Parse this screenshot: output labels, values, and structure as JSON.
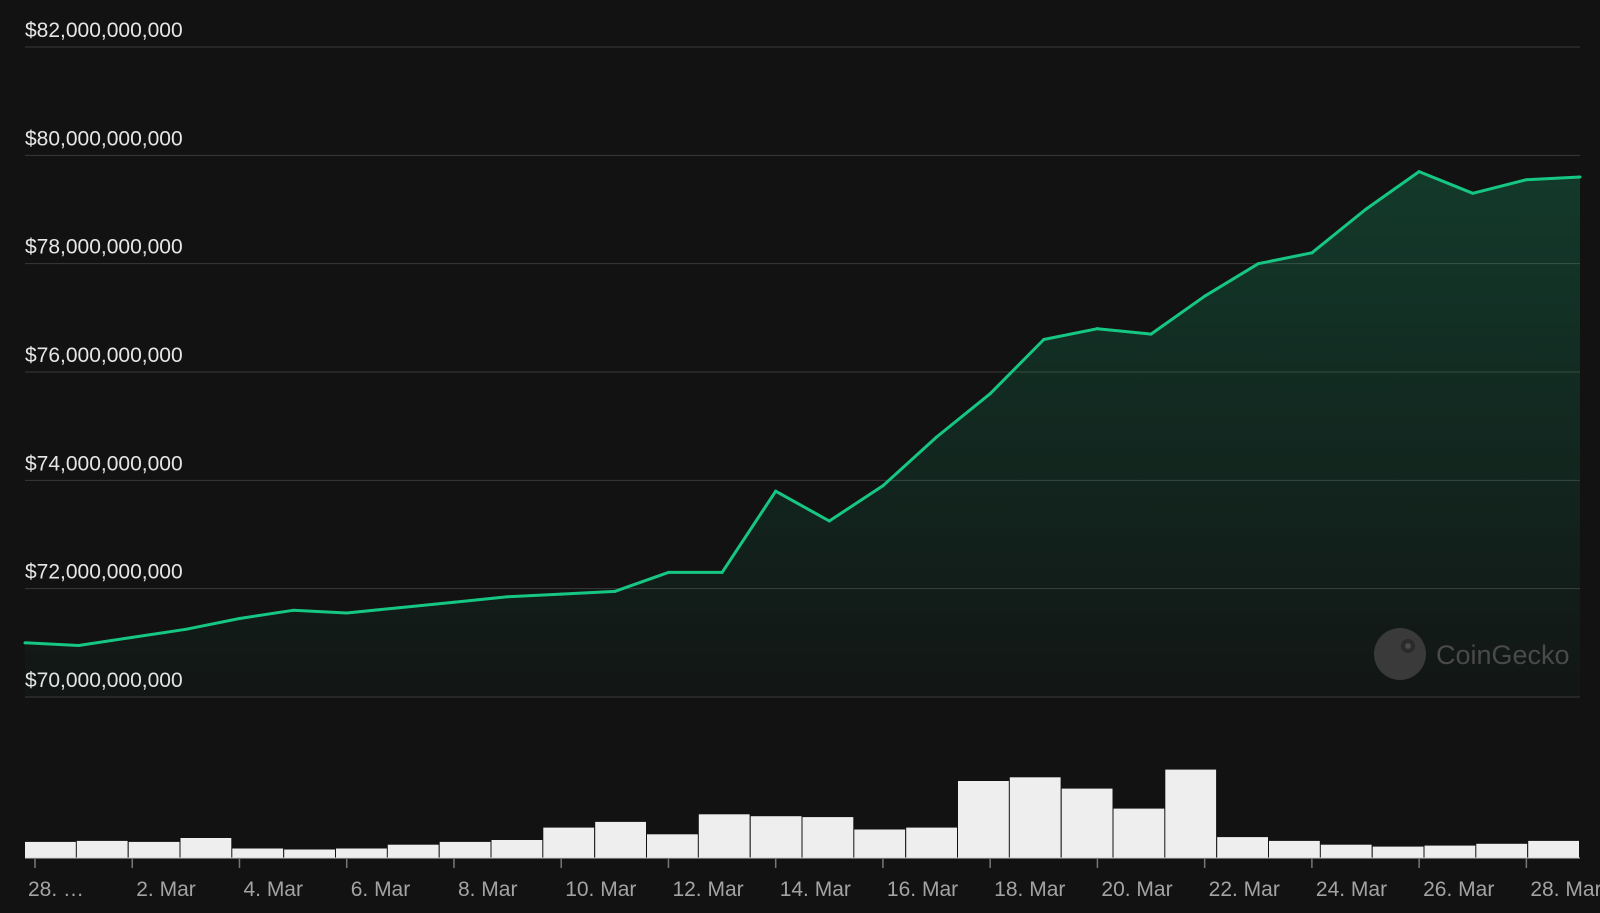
{
  "chart_data": {
    "type": "area",
    "series": [
      {
        "x": [
          "Feb 28",
          "Mar 1",
          "Mar 2",
          "Mar 3",
          "Mar 4",
          "Mar 5",
          "Mar 6",
          "Mar 7",
          "Mar 8",
          "Mar 9",
          "Mar 10",
          "Mar 11",
          "Mar 12",
          "Mar 13",
          "Mar 14",
          "Mar 15",
          "Mar 16",
          "Mar 17",
          "Mar 18",
          "Mar 19",
          "Mar 20",
          "Mar 21",
          "Mar 22",
          "Mar 23",
          "Mar 24",
          "Mar 25",
          "Mar 26",
          "Mar 27",
          "Mar 28",
          "Mar 29"
        ],
        "values": [
          71000000000,
          70950000000,
          71100000000,
          71250000000,
          71450000000,
          71600000000,
          71550000000,
          71650000000,
          71750000000,
          71850000000,
          71900000000,
          71950000000,
          72300000000,
          72300000000,
          73800000000,
          73250000000,
          73900000000,
          74800000000,
          75600000000,
          76600000000,
          76800000000,
          76700000000,
          77400000000,
          78000000000,
          78200000000,
          79000000000,
          79700000000,
          79300000000,
          79550000000,
          79600000000
        ]
      },
      {
        "x": [
          "Feb 28",
          "Mar 1",
          "Mar 2",
          "Mar 3",
          "Mar 4",
          "Mar 5",
          "Mar 6",
          "Mar 7",
          "Mar 8",
          "Mar 9",
          "Mar 10",
          "Mar 11",
          "Mar 12",
          "Mar 13",
          "Mar 14",
          "Mar 15",
          "Mar 16",
          "Mar 17",
          "Mar 18",
          "Mar 19",
          "Mar 20",
          "Mar 21",
          "Mar 22",
          "Mar 23",
          "Mar 24",
          "Mar 25",
          "Mar 26",
          "Mar 27",
          "Mar 28",
          "Mar 29"
        ],
        "values": [
          0.17,
          0.18,
          0.17,
          0.21,
          0.1,
          0.09,
          0.1,
          0.14,
          0.17,
          0.19,
          0.32,
          0.38,
          0.25,
          0.46,
          0.44,
          0.43,
          0.3,
          0.32,
          0.81,
          0.85,
          0.73,
          0.52,
          0.93,
          0.22,
          0.18,
          0.14,
          0.12,
          0.13,
          0.15,
          0.18
        ]
      }
    ],
    "y_ticks": [
      "$70,000,000,000",
      "$72,000,000,000",
      "$74,000,000,000",
      "$76,000,000,000",
      "$78,000,000,000",
      "$80,000,000,000",
      "$82,000,000,000"
    ],
    "x_ticks": [
      "28. …",
      "2. Mar",
      "4. Mar",
      "6. Mar",
      "8. Mar",
      "10. Mar",
      "12. Mar",
      "14. Mar",
      "16. Mar",
      "18. Mar",
      "20. Mar",
      "22. Mar",
      "24. Mar",
      "26. Mar",
      "28. Mar"
    ],
    "ylim": [
      70000000000,
      82000000000
    ],
    "grid": true,
    "line_color": "#16c784",
    "volume_color": "#eeeeee"
  },
  "watermark": {
    "text": "CoinGecko",
    "icon": "gecko-icon"
  }
}
